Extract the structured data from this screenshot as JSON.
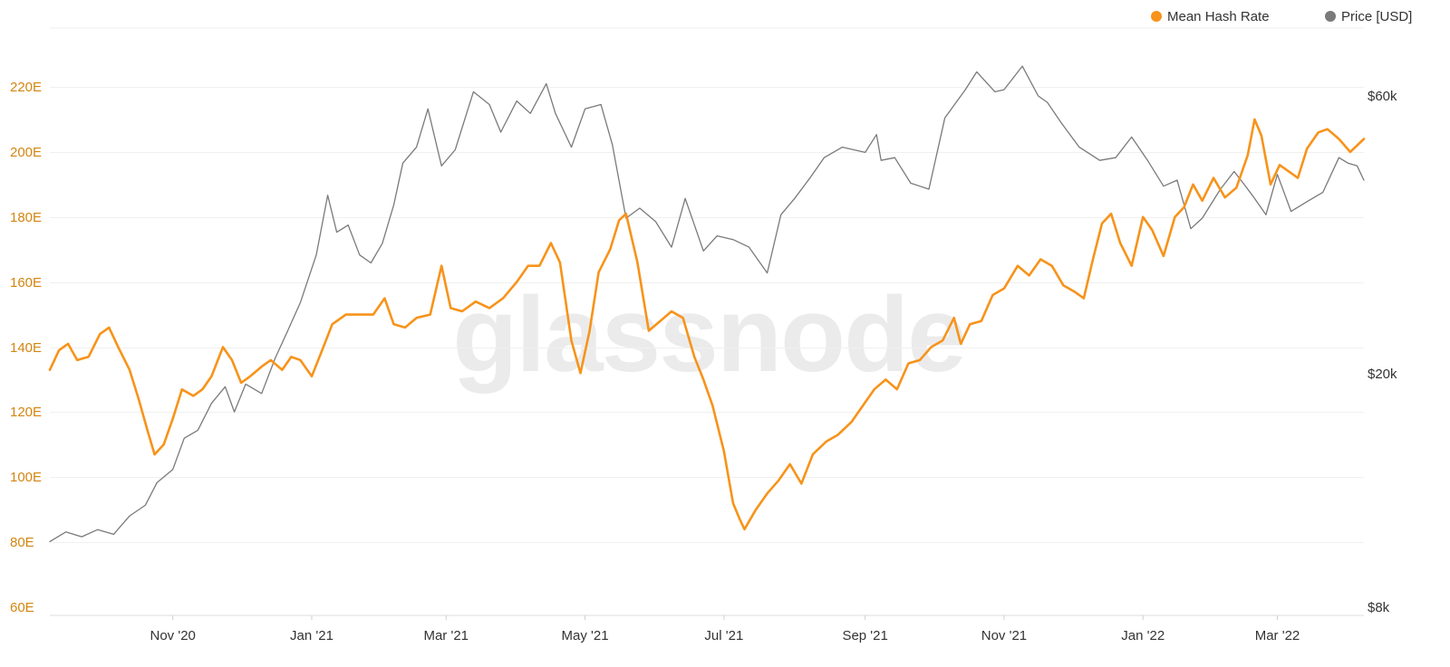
{
  "watermark": "glassnode",
  "legend": [
    {
      "label": "Mean Hash Rate",
      "color": "#f7931a"
    },
    {
      "label": "Price [USD]",
      "color": "#7a7a7a"
    }
  ],
  "chart_data": {
    "type": "line",
    "title": "",
    "xlabel": "",
    "ylabel": "",
    "x_range": [
      "2020-09-08",
      "2022-04-08"
    ],
    "grid": true,
    "legend_placement": "top-right",
    "x_ticks": [
      {
        "date": "2020-11-01",
        "label": "Nov '20"
      },
      {
        "date": "2021-01-01",
        "label": "Jan '21"
      },
      {
        "date": "2021-03-01",
        "label": "Mar '21"
      },
      {
        "date": "2021-05-01",
        "label": "May '21"
      },
      {
        "date": "2021-07-01",
        "label": "Jul '21"
      },
      {
        "date": "2021-09-01",
        "label": "Sep '21"
      },
      {
        "date": "2021-11-01",
        "label": "Nov '21"
      },
      {
        "date": "2022-01-01",
        "label": "Jan '22"
      },
      {
        "date": "2022-03-01",
        "label": "Mar '22"
      }
    ],
    "y_left": {
      "range": [
        60,
        240
      ],
      "unit": "EH/s",
      "ticks": [
        {
          "value": 60,
          "label": "60E"
        },
        {
          "value": 80,
          "label": "80E"
        },
        {
          "value": 100,
          "label": "100E"
        },
        {
          "value": 120,
          "label": "120E"
        },
        {
          "value": 140,
          "label": "140E"
        },
        {
          "value": 160,
          "label": "160E"
        },
        {
          "value": 180,
          "label": "180E"
        },
        {
          "value": 200,
          "label": "200E"
        },
        {
          "value": 220,
          "label": "220E"
        }
      ]
    },
    "y_right": {
      "scale": "log",
      "unit": "USD",
      "ticks": [
        {
          "value": 8000,
          "label": "$8k"
        },
        {
          "value": 20000,
          "label": "$20k"
        },
        {
          "value": 60000,
          "label": "$60k"
        }
      ]
    },
    "series": [
      {
        "name": "Mean Hash Rate",
        "axis": "left",
        "color": "#f7931a",
        "points": [
          [
            "2020-09-08",
            133
          ],
          [
            "2020-09-12",
            139
          ],
          [
            "2020-09-16",
            141
          ],
          [
            "2020-09-20",
            136
          ],
          [
            "2020-09-25",
            137
          ],
          [
            "2020-09-30",
            144
          ],
          [
            "2020-10-04",
            146
          ],
          [
            "2020-10-08",
            140
          ],
          [
            "2020-10-13",
            133
          ],
          [
            "2020-10-17",
            124
          ],
          [
            "2020-10-21",
            114
          ],
          [
            "2020-10-24",
            107
          ],
          [
            "2020-10-28",
            110
          ],
          [
            "2020-11-01",
            118
          ],
          [
            "2020-11-05",
            127
          ],
          [
            "2020-11-10",
            125
          ],
          [
            "2020-11-14",
            127
          ],
          [
            "2020-11-18",
            131
          ],
          [
            "2020-11-23",
            140
          ],
          [
            "2020-11-27",
            136
          ],
          [
            "2020-12-01",
            129
          ],
          [
            "2020-12-05",
            131
          ],
          [
            "2020-12-10",
            134
          ],
          [
            "2020-12-14",
            136
          ],
          [
            "2020-12-19",
            133
          ],
          [
            "2020-12-23",
            137
          ],
          [
            "2020-12-27",
            136
          ],
          [
            "2021-01-01",
            131
          ],
          [
            "2021-01-05",
            138
          ],
          [
            "2021-01-10",
            147
          ],
          [
            "2021-01-16",
            150
          ],
          [
            "2021-01-22",
            150
          ],
          [
            "2021-01-28",
            150
          ],
          [
            "2021-02-02",
            155
          ],
          [
            "2021-02-06",
            147
          ],
          [
            "2021-02-11",
            146
          ],
          [
            "2021-02-16",
            149
          ],
          [
            "2021-02-22",
            150
          ],
          [
            "2021-02-27",
            165
          ],
          [
            "2021-03-03",
            152
          ],
          [
            "2021-03-08",
            151
          ],
          [
            "2021-03-14",
            154
          ],
          [
            "2021-03-20",
            152
          ],
          [
            "2021-03-26",
            155
          ],
          [
            "2021-04-01",
            160
          ],
          [
            "2021-04-06",
            165
          ],
          [
            "2021-04-11",
            165
          ],
          [
            "2021-04-16",
            172
          ],
          [
            "2021-04-20",
            166
          ],
          [
            "2021-04-25",
            142
          ],
          [
            "2021-04-29",
            132
          ],
          [
            "2021-05-03",
            145
          ],
          [
            "2021-05-07",
            163
          ],
          [
            "2021-05-12",
            170
          ],
          [
            "2021-05-16",
            179
          ],
          [
            "2021-05-19",
            181
          ],
          [
            "2021-05-24",
            166
          ],
          [
            "2021-05-29",
            145
          ],
          [
            "2021-06-03",
            148
          ],
          [
            "2021-06-08",
            151
          ],
          [
            "2021-06-13",
            149
          ],
          [
            "2021-06-18",
            137
          ],
          [
            "2021-06-22",
            130
          ],
          [
            "2021-06-26",
            122
          ],
          [
            "2021-07-01",
            108
          ],
          [
            "2021-07-05",
            92
          ],
          [
            "2021-07-08",
            87
          ],
          [
            "2021-07-10",
            84
          ],
          [
            "2021-07-15",
            90
          ],
          [
            "2021-07-20",
            95
          ],
          [
            "2021-07-25",
            99
          ],
          [
            "2021-07-30",
            104
          ],
          [
            "2021-08-04",
            98
          ],
          [
            "2021-08-09",
            107
          ],
          [
            "2021-08-15",
            111
          ],
          [
            "2021-08-20",
            113
          ],
          [
            "2021-08-26",
            117
          ],
          [
            "2021-08-31",
            122
          ],
          [
            "2021-09-05",
            127
          ],
          [
            "2021-09-10",
            130
          ],
          [
            "2021-09-15",
            127
          ],
          [
            "2021-09-20",
            135
          ],
          [
            "2021-09-25",
            136
          ],
          [
            "2021-09-30",
            140
          ],
          [
            "2021-10-05",
            142
          ],
          [
            "2021-10-10",
            149
          ],
          [
            "2021-10-13",
            141
          ],
          [
            "2021-10-17",
            147
          ],
          [
            "2021-10-22",
            148
          ],
          [
            "2021-10-27",
            156
          ],
          [
            "2021-11-01",
            158
          ],
          [
            "2021-11-07",
            165
          ],
          [
            "2021-11-12",
            162
          ],
          [
            "2021-11-17",
            167
          ],
          [
            "2021-11-22",
            165
          ],
          [
            "2021-11-27",
            159
          ],
          [
            "2021-12-02",
            157
          ],
          [
            "2021-12-06",
            155
          ],
          [
            "2021-12-10",
            167
          ],
          [
            "2021-12-14",
            178
          ],
          [
            "2021-12-18",
            181
          ],
          [
            "2021-12-22",
            172
          ],
          [
            "2021-12-27",
            165
          ],
          [
            "2022-01-01",
            180
          ],
          [
            "2022-01-05",
            176
          ],
          [
            "2022-01-10",
            168
          ],
          [
            "2022-01-15",
            180
          ],
          [
            "2022-01-19",
            183
          ],
          [
            "2022-01-23",
            190
          ],
          [
            "2022-01-27",
            185
          ],
          [
            "2022-02-01",
            192
          ],
          [
            "2022-02-06",
            186
          ],
          [
            "2022-02-11",
            189
          ],
          [
            "2022-02-16",
            199
          ],
          [
            "2022-02-19",
            210
          ],
          [
            "2022-02-22",
            205
          ],
          [
            "2022-02-26",
            190
          ],
          [
            "2022-03-02",
            196
          ],
          [
            "2022-03-06",
            194
          ],
          [
            "2022-03-10",
            192
          ],
          [
            "2022-03-14",
            201
          ],
          [
            "2022-03-19",
            206
          ],
          [
            "2022-03-23",
            207
          ],
          [
            "2022-03-28",
            204
          ],
          [
            "2022-04-02",
            200
          ],
          [
            "2022-04-08",
            204
          ]
        ]
      },
      {
        "name": "Price [USD]",
        "axis": "right",
        "color": "#7a7a7a",
        "points": [
          [
            "2020-09-08",
            10300
          ],
          [
            "2020-09-15",
            10700
          ],
          [
            "2020-09-22",
            10500
          ],
          [
            "2020-09-29",
            10800
          ],
          [
            "2020-10-06",
            10600
          ],
          [
            "2020-10-13",
            11400
          ],
          [
            "2020-10-20",
            11900
          ],
          [
            "2020-10-25",
            13000
          ],
          [
            "2020-11-01",
            13700
          ],
          [
            "2020-11-06",
            15500
          ],
          [
            "2020-11-12",
            16000
          ],
          [
            "2020-11-18",
            17800
          ],
          [
            "2020-11-24",
            19000
          ],
          [
            "2020-11-28",
            17200
          ],
          [
            "2020-12-03",
            19200
          ],
          [
            "2020-12-10",
            18500
          ],
          [
            "2020-12-16",
            21300
          ],
          [
            "2020-12-21",
            23500
          ],
          [
            "2020-12-27",
            26500
          ],
          [
            "2021-01-03",
            32000
          ],
          [
            "2021-01-08",
            40500
          ],
          [
            "2021-01-12",
            35000
          ],
          [
            "2021-01-17",
            36000
          ],
          [
            "2021-01-22",
            32000
          ],
          [
            "2021-01-27",
            31000
          ],
          [
            "2021-02-01",
            33500
          ],
          [
            "2021-02-06",
            39000
          ],
          [
            "2021-02-10",
            46000
          ],
          [
            "2021-02-16",
            49000
          ],
          [
            "2021-02-21",
            57000
          ],
          [
            "2021-02-27",
            45500
          ],
          [
            "2021-03-05",
            48500
          ],
          [
            "2021-03-13",
            61000
          ],
          [
            "2021-03-20",
            58000
          ],
          [
            "2021-03-25",
            52000
          ],
          [
            "2021-04-01",
            58800
          ],
          [
            "2021-04-07",
            56000
          ],
          [
            "2021-04-14",
            63000
          ],
          [
            "2021-04-18",
            56000
          ],
          [
            "2021-04-25",
            49000
          ],
          [
            "2021-05-01",
            57000
          ],
          [
            "2021-05-08",
            58000
          ],
          [
            "2021-05-13",
            49500
          ],
          [
            "2021-05-19",
            37000
          ],
          [
            "2021-05-25",
            38500
          ],
          [
            "2021-06-01",
            36500
          ],
          [
            "2021-06-08",
            33000
          ],
          [
            "2021-06-14",
            40000
          ],
          [
            "2021-06-22",
            32500
          ],
          [
            "2021-06-28",
            34500
          ],
          [
            "2021-07-05",
            34000
          ],
          [
            "2021-07-12",
            33000
          ],
          [
            "2021-07-20",
            29800
          ],
          [
            "2021-07-26",
            37500
          ],
          [
            "2021-08-01",
            40000
          ],
          [
            "2021-08-08",
            43500
          ],
          [
            "2021-08-14",
            47000
          ],
          [
            "2021-08-22",
            49000
          ],
          [
            "2021-09-01",
            48000
          ],
          [
            "2021-09-06",
            51500
          ],
          [
            "2021-09-08",
            46500
          ],
          [
            "2021-09-14",
            47000
          ],
          [
            "2021-09-21",
            42500
          ],
          [
            "2021-09-29",
            41500
          ],
          [
            "2021-10-06",
            55000
          ],
          [
            "2021-10-15",
            61500
          ],
          [
            "2021-10-20",
            66000
          ],
          [
            "2021-10-28",
            61000
          ],
          [
            "2021-11-01",
            61500
          ],
          [
            "2021-11-09",
            67500
          ],
          [
            "2021-11-16",
            60000
          ],
          [
            "2021-11-20",
            58500
          ],
          [
            "2021-11-26",
            54000
          ],
          [
            "2021-12-04",
            49000
          ],
          [
            "2021-12-13",
            46500
          ],
          [
            "2021-12-20",
            47000
          ],
          [
            "2021-12-27",
            51000
          ],
          [
            "2022-01-03",
            46500
          ],
          [
            "2022-01-10",
            42000
          ],
          [
            "2022-01-16",
            43000
          ],
          [
            "2022-01-22",
            35500
          ],
          [
            "2022-01-27",
            37000
          ],
          [
            "2022-02-04",
            41500
          ],
          [
            "2022-02-10",
            44500
          ],
          [
            "2022-02-14",
            42500
          ],
          [
            "2022-02-18",
            40500
          ],
          [
            "2022-02-24",
            37500
          ],
          [
            "2022-03-01",
            44000
          ],
          [
            "2022-03-07",
            38000
          ],
          [
            "2022-03-14",
            39500
          ],
          [
            "2022-03-21",
            41000
          ],
          [
            "2022-03-28",
            47000
          ],
          [
            "2022-04-01",
            46000
          ],
          [
            "2022-04-05",
            45500
          ],
          [
            "2022-04-08",
            43000
          ]
        ]
      }
    ]
  }
}
